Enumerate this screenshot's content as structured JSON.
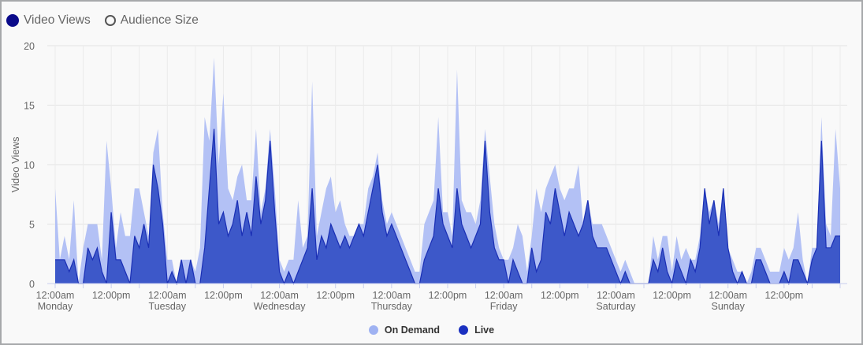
{
  "top_legend": {
    "items": [
      {
        "label": "Video Views",
        "selected": true
      },
      {
        "label": "Audience Size",
        "selected": false
      }
    ]
  },
  "chart_data": {
    "type": "area",
    "stacked": true,
    "ylabel": "Video Views",
    "ylim": [
      0,
      20
    ],
    "yticks": [
      "0",
      "5",
      "10",
      "15",
      "20"
    ],
    "xlim_hours": [
      0,
      168
    ],
    "x_interval": "hourly",
    "xticks": [
      {
        "line1": "12:00am",
        "line2": "Monday"
      },
      {
        "line1": "12:00pm",
        "line2": ""
      },
      {
        "line1": "12:00am",
        "line2": "Tuesday"
      },
      {
        "line1": "12:00pm",
        "line2": ""
      },
      {
        "line1": "12:00am",
        "line2": "Wednesday"
      },
      {
        "line1": "12:00pm",
        "line2": ""
      },
      {
        "line1": "12:00am",
        "line2": "Thursday"
      },
      {
        "line1": "12:00pm",
        "line2": ""
      },
      {
        "line1": "12:00am",
        "line2": "Friday"
      },
      {
        "line1": "12:00pm",
        "line2": ""
      },
      {
        "line1": "12:00am",
        "line2": "Saturday"
      },
      {
        "line1": "12:00pm",
        "line2": ""
      },
      {
        "line1": "12:00am",
        "line2": "Sunday"
      },
      {
        "line1": "12:00pm",
        "line2": ""
      }
    ],
    "grid": true,
    "legend_position": "bottom",
    "series": [
      {
        "name": "Live",
        "color": "#3d58c9",
        "line_color": "#1a2fb5",
        "legend_color": "#1a30c0",
        "values": [
          2,
          2,
          2,
          1,
          2,
          0,
          0,
          3,
          2,
          3,
          1,
          0,
          6,
          2,
          2,
          1,
          0,
          4,
          3,
          5,
          3,
          10,
          8,
          5,
          0,
          1,
          0,
          2,
          0,
          2,
          0,
          0,
          3,
          8,
          13,
          5,
          6,
          4,
          5,
          7,
          4,
          6,
          4,
          9,
          5,
          7,
          12,
          6,
          1,
          0,
          1,
          0,
          1,
          2,
          3,
          8,
          2,
          4,
          3,
          5,
          4,
          3,
          4,
          3,
          4,
          5,
          4,
          6,
          8,
          10,
          6,
          4,
          5,
          4,
          3,
          2,
          1,
          0,
          0,
          2,
          3,
          4,
          8,
          5,
          4,
          3,
          8,
          5,
          4,
          3,
          4,
          5,
          12,
          6,
          3,
          2,
          2,
          0,
          2,
          1,
          0,
          0,
          3,
          1,
          2,
          6,
          5,
          8,
          6,
          4,
          6,
          5,
          4,
          5,
          7,
          4,
          3,
          3,
          3,
          2,
          1,
          0,
          1,
          0,
          0,
          0,
          0,
          0,
          2,
          1,
          3,
          1,
          0,
          2,
          1,
          0,
          2,
          1,
          3,
          8,
          5,
          7,
          4,
          8,
          3,
          1,
          0,
          1,
          0,
          0,
          2,
          2,
          1,
          0,
          0,
          0,
          1,
          0,
          2,
          2,
          1,
          0,
          2,
          3,
          12,
          3,
          3,
          4,
          4
        ]
      },
      {
        "name": "On Demand",
        "color": "#b3c1f5",
        "legend_color": "#9fb2f2",
        "values": [
          6,
          0,
          2,
          1,
          5,
          0,
          3,
          2,
          3,
          2,
          1,
          12,
          2,
          1,
          4,
          3,
          4,
          4,
          5,
          1,
          1,
          1,
          5,
          1,
          2,
          1,
          0,
          0,
          2,
          0,
          1,
          3,
          11,
          4,
          6,
          5,
          10,
          4,
          2,
          2,
          6,
          1,
          3,
          4,
          1,
          1,
          1,
          2,
          1,
          1,
          1,
          2,
          6,
          1,
          1,
          9,
          2,
          2,
          5,
          4,
          2,
          4,
          1,
          1,
          0,
          0,
          1,
          2,
          1,
          1,
          1,
          1,
          1,
          1,
          1,
          1,
          1,
          1,
          1,
          3,
          3,
          3,
          6,
          1,
          2,
          1,
          10,
          2,
          2,
          3,
          1,
          2,
          1,
          3,
          2,
          1,
          0,
          2,
          1,
          4,
          4,
          1,
          1,
          7,
          4,
          2,
          4,
          2,
          2,
          3,
          2,
          3,
          6,
          0,
          0,
          1,
          2,
          2,
          1,
          1,
          1,
          1,
          1,
          1,
          0,
          0,
          0,
          0,
          2,
          1,
          1,
          3,
          1,
          2,
          1,
          3,
          0,
          1,
          1,
          0,
          1,
          0,
          1,
          0,
          0,
          1,
          1,
          0,
          0,
          1,
          1,
          1,
          1,
          1,
          1,
          1,
          2,
          2,
          1,
          4,
          1,
          0,
          1,
          0,
          2,
          2,
          1,
          9,
          4
        ]
      }
    ]
  },
  "bottom_legend": {
    "items": [
      {
        "label": "On Demand"
      },
      {
        "label": "Live"
      }
    ]
  }
}
